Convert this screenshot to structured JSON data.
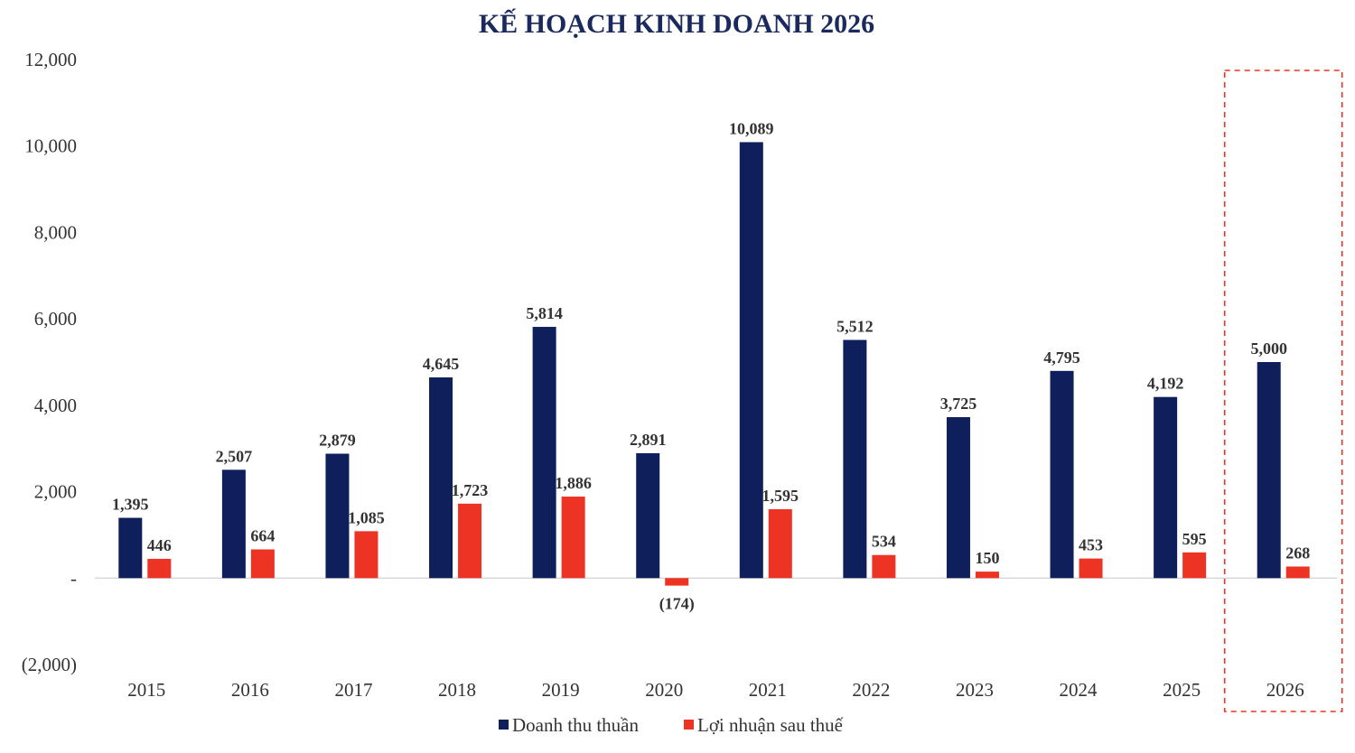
{
  "chart_data": {
    "type": "bar",
    "title": "KẾ HOẠCH KINH DOANH 2026",
    "categories": [
      "2015",
      "2016",
      "2017",
      "2018",
      "2019",
      "2020",
      "2021",
      "2022",
      "2023",
      "2024",
      "2025",
      "2026"
    ],
    "series": [
      {
        "name": "Doanh thu thuần",
        "color": "#0f1f5c",
        "values": [
          1395,
          2507,
          2879,
          4645,
          5814,
          2891,
          10089,
          5512,
          3725,
          4795,
          4192,
          5000
        ],
        "labels": [
          "1,395",
          "2,507",
          "2,879",
          "4,645",
          "5,814",
          "2,891",
          "10,089",
          "5,512",
          "3,725",
          "4,795",
          "4,192",
          "5,000"
        ]
      },
      {
        "name": "Lợi nhuận sau thuế",
        "color": "#ec3324",
        "values": [
          446,
          664,
          1085,
          1723,
          1886,
          -174,
          1595,
          534,
          150,
          453,
          595,
          268
        ],
        "labels": [
          "446",
          "664",
          "1,085",
          "1,723",
          "1,886",
          "(174)",
          "1,595",
          "534",
          "150",
          "453",
          "595",
          "268"
        ]
      }
    ],
    "ylim": [
      -2000,
      12000
    ],
    "yticks": [
      12000,
      10000,
      8000,
      6000,
      4000,
      2000,
      0,
      -2000
    ],
    "ytick_labels": [
      "12,000",
      "10,000",
      "8,000",
      "6,000",
      "4,000",
      "2,000",
      "-",
      "(2,000)"
    ],
    "grid": false,
    "legend_position": "bottom",
    "highlight_category": "2026",
    "highlight_color": "#ec3324"
  }
}
